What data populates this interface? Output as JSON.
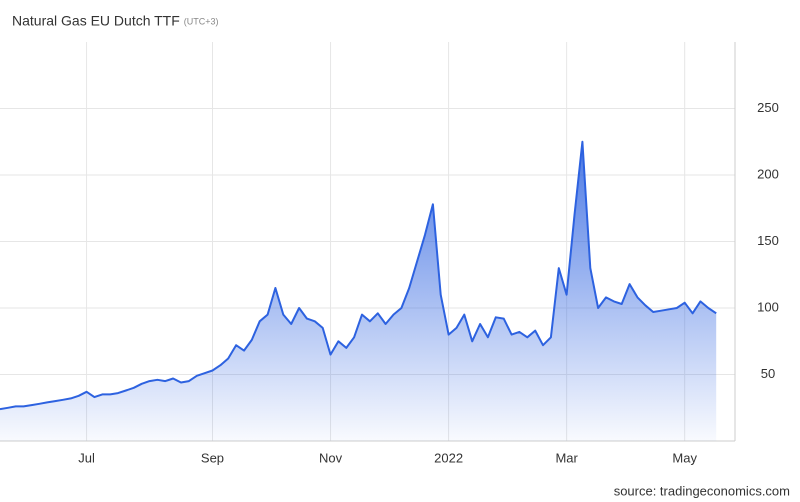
{
  "chart_data": {
    "type": "area",
    "title": "Natural Gas EU Dutch TTF",
    "subtitle": "(UTC+3)",
    "source": "source: tradingeconomics.com",
    "categories": [
      null,
      null,
      null,
      null,
      null,
      null,
      null,
      null,
      null,
      null,
      null,
      "Jul",
      null,
      null,
      null,
      null,
      null,
      null,
      null,
      null,
      null,
      null,
      null,
      null,
      null,
      null,
      null,
      "Sep",
      null,
      null,
      null,
      null,
      null,
      null,
      null,
      null,
      null,
      null,
      null,
      null,
      null,
      null,
      "Nov",
      null,
      null,
      null,
      null,
      null,
      null,
      null,
      null,
      null,
      null,
      null,
      null,
      null,
      null,
      "2022",
      null,
      null,
      null,
      null,
      null,
      null,
      null,
      null,
      null,
      null,
      null,
      null,
      null,
      null,
      "Mar",
      null,
      null,
      null,
      null,
      null,
      null,
      null,
      null,
      null,
      null,
      null,
      null,
      null,
      null,
      "May",
      null,
      null,
      null,
      null
    ],
    "values": [
      24,
      25,
      26,
      26,
      27,
      28,
      29,
      30,
      31,
      32,
      34,
      37,
      33,
      35,
      35,
      36,
      38,
      40,
      43,
      45,
      46,
      45,
      47,
      44,
      45,
      49,
      51,
      53,
      57,
      62,
      72,
      68,
      76,
      90,
      95,
      115,
      95,
      88,
      100,
      92,
      90,
      85,
      65,
      75,
      70,
      78,
      95,
      90,
      96,
      88,
      95,
      100,
      115,
      135,
      155,
      178,
      110,
      80,
      85,
      95,
      75,
      88,
      78,
      93,
      92,
      80,
      82,
      78,
      83,
      72,
      78,
      130,
      110,
      170,
      225,
      130,
      100,
      108,
      105,
      103,
      118,
      108,
      102,
      97,
      98,
      99,
      100,
      104,
      96,
      105,
      100,
      96
    ],
    "color": "#2d62e0",
    "ylim": [
      0,
      300
    ],
    "yticks": [
      50,
      100,
      150,
      200,
      250
    ],
    "grid": true
  }
}
